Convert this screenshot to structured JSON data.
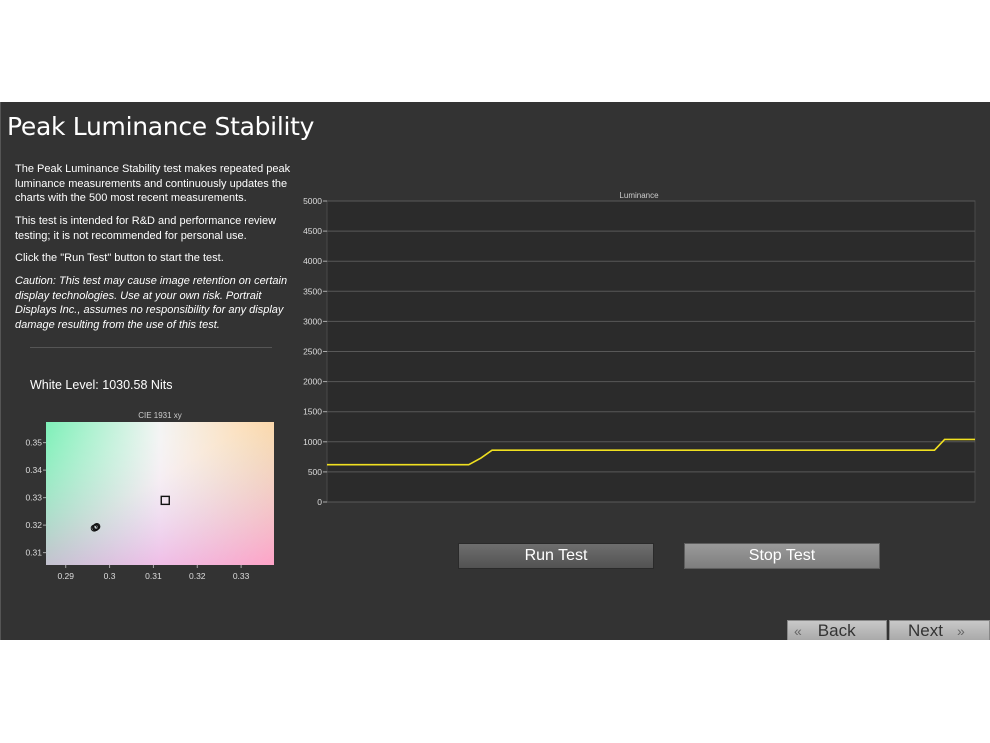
{
  "page": {
    "title": "Peak Luminance Stability",
    "description": [
      "The Peak Luminance Stability test makes repeated peak luminance measurements and continuously updates the charts with the 500 most recent measurements.",
      "This test is intended for R&D and performance review testing; it is not recommended for personal use.",
      "Click the \"Run Test\" button to start the test."
    ],
    "caution": "Caution: This test may cause image retention on certain display technologies. Use at your own risk. Portrait Displays Inc., assumes no responsibility for any display damage resulting from the use of this test.",
    "white_level": "White Level: 1030.58 Nits"
  },
  "buttons": {
    "run": "Run Test",
    "stop": "Stop Test",
    "back": "Back",
    "next": "Next"
  },
  "icons": {
    "back": "double-chevron-left-icon",
    "next": "double-chevron-right-icon"
  },
  "colors": {
    "background": "#333333",
    "plot_background": "#2b2b2b",
    "luminance_line": "#f0e020"
  },
  "chart_data": [
    {
      "type": "line",
      "title": "Luminance",
      "xlabel": "",
      "ylabel": "",
      "ylim": [
        0,
        5000
      ],
      "yticks": [
        "0",
        "500",
        "1000",
        "1500",
        "2000",
        "2500",
        "3000",
        "3500",
        "4000",
        "4500",
        "5000"
      ],
      "grid": true,
      "legend": "none",
      "series": [
        {
          "x": [
            0,
            130,
            140,
            152,
            163,
            500,
            600,
            610,
            640
          ],
          "values": [
            620,
            620,
            620,
            730,
            860,
            860,
            860,
            1040,
            1040
          ]
        }
      ]
    },
    {
      "type": "scatter",
      "title": "CIE 1931 xy",
      "xlabel": "",
      "ylabel": "",
      "xlim": [
        0.2855,
        0.3375
      ],
      "ylim": [
        0.3055,
        0.3575
      ],
      "xticks": [
        "0.29",
        "0.3",
        "0.31",
        "0.32",
        "0.33"
      ],
      "yticks": [
        "0.31",
        "0.32",
        "0.33",
        "0.34",
        "0.35"
      ],
      "target": {
        "x": 0.3127,
        "y": 0.329
      },
      "points": [
        {
          "x": 0.2968,
          "y": 0.3191
        },
        {
          "x": 0.2971,
          "y": 0.3195
        },
        {
          "x": 0.2965,
          "y": 0.3189
        },
        {
          "x": 0.2969,
          "y": 0.3193
        }
      ]
    }
  ]
}
